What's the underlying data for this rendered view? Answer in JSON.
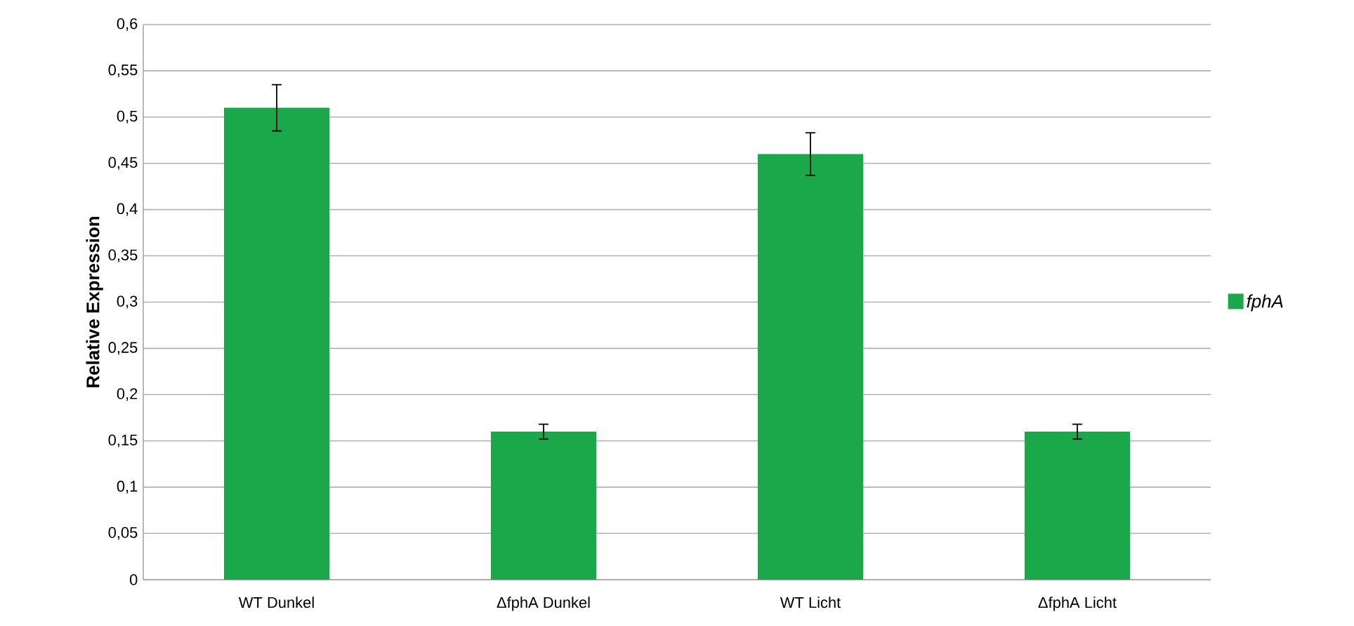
{
  "chart_data": {
    "type": "bar",
    "ylabel": "Relative Expression",
    "categories": [
      "WT Dunkel",
      "ΔfphA Dunkel",
      "WT Licht",
      "ΔfphA Licht"
    ],
    "series": [
      {
        "name": "fphA",
        "color": "#1aa84b",
        "values": [
          0.51,
          0.16,
          0.46,
          0.16
        ],
        "errors": [
          0.025,
          0.008,
          0.023,
          0.008
        ]
      }
    ],
    "ylim": [
      0,
      0.6
    ],
    "yticks": [
      0,
      {
        "value": 0.05,
        "label": "0,05"
      },
      {
        "value": 0.1,
        "label": "0,1"
      },
      {
        "value": 0.15,
        "label": "0,15"
      },
      {
        "value": 0.2,
        "label": "0,2"
      },
      {
        "value": 0.25,
        "label": "0,25"
      },
      {
        "value": 0.3,
        "label": "0,3"
      },
      {
        "value": 0.35,
        "label": "0,35"
      },
      {
        "value": 0.4,
        "label": "0,4"
      },
      {
        "value": 0.45,
        "label": "0,45"
      },
      {
        "value": 0.5,
        "label": "0,5"
      },
      {
        "value": 0.55,
        "label": "0,55"
      },
      {
        "value": 0.6,
        "label": "0,6"
      }
    ],
    "grid": "y",
    "legend": "right"
  }
}
